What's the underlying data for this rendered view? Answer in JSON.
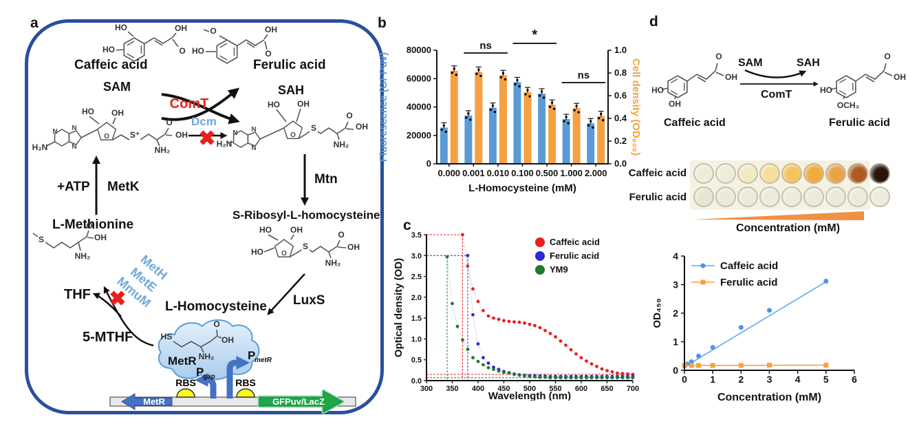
{
  "panels": {
    "a": "a",
    "b": "b",
    "c": "c",
    "d": "d"
  },
  "atoms": {
    "ho": "HO",
    "oh": "OH",
    "o": "O",
    "n": "N",
    "s": "S",
    "s_plus": "S⁺",
    "hs": "HS",
    "nh2": "NH₂",
    "h2n": "H₂N",
    "och3": "OCH₃"
  },
  "panel_a": {
    "caffeic": "Caffeic acid",
    "ferulic": "Ferulic acid",
    "comt": "ComT",
    "sam": "SAM",
    "sah": "SAH",
    "dcm": "Dcm",
    "mtn": "Mtn",
    "sribosyl": "S-Ribosyl-L-homocysteine",
    "luxs": "LuxS",
    "lhomocysteine": "L-Homocysteine",
    "metr": "MetR",
    "atp": "+ATP",
    "metk": "MetK",
    "lmethionine": "L-Methionine",
    "thf": "THF",
    "mthf": "5-MTHF",
    "meth": "MetH",
    "mete": "MetE",
    "mmum": "MmuM",
    "rbs": "RBS",
    "gene_metr": "MetR",
    "gene_gfp": "GFPuv/LacZ",
    "p": "P",
    "p_gap_sub": "gap",
    "p_metr_sub": "metR",
    "block_x": "✖"
  },
  "panel_d": {
    "sam": "SAM",
    "sah": "SAH",
    "comt": "ComT",
    "caffeic": "Caffeic acid",
    "ferulic": "Ferulic acid",
    "plate_row1": "Caffeic acid",
    "plate_row2": "Ferulic acid",
    "wedge_label": "Concentration (mM)",
    "plate": {
      "caffeic_colors": [
        "#ECEFD8",
        "#EDEEDA",
        "#F0EAC2",
        "#F6DE9C",
        "#F6C45F",
        "#F3A93C",
        "#E9A449",
        "#AE5A1F",
        "#28160E"
      ],
      "ferulic_colors": [
        "#E7E5D3",
        "#EBE9D7",
        "#ECEAD8",
        "#EDEBDB",
        "#EDECDC",
        "#ECEADA",
        "#EBE9D9",
        "#ECEBDB",
        "#EDECDE"
      ]
    }
  },
  "chart_data": [
    {
      "panel": "b",
      "type": "bar",
      "categories": [
        "0.000",
        "0.001",
        "0.010",
        "0.100",
        "0.500",
        "1.000",
        "2.000"
      ],
      "xlabel": "L-Homocysteine (mM)",
      "left_axis": {
        "label": "Fluorescence (GFPuv)",
        "color": "#5B9BD5",
        "range": [
          0,
          80000
        ],
        "tick_values": [
          0,
          20000,
          40000,
          60000,
          80000
        ],
        "tick_labels": [
          "0",
          "20000",
          "40000",
          "60000",
          "80000"
        ]
      },
      "right_axis": {
        "label": "Cell density (OD₆₀₀)",
        "color": "#F5A142",
        "range": [
          0,
          1
        ],
        "tick_values": [
          0,
          0.2,
          0.4,
          0.6,
          0.8,
          1.0
        ],
        "tick_labels": [
          "0.0",
          "0.2",
          "0.4",
          "0.6",
          "0.8",
          "1.0"
        ]
      },
      "series": [
        {
          "name": "Fluorescence (GFPuv)",
          "axis": "left",
          "color": "#5B9BD5",
          "values": [
            25500,
            34000,
            39500,
            57500,
            49500,
            31500,
            28500
          ]
        },
        {
          "name": "Cell density (OD600)",
          "axis": "right",
          "color": "#F5A142",
          "values": [
            0.82,
            0.81,
            0.78,
            0.63,
            0.52,
            0.49,
            0.42
          ]
        }
      ],
      "significance": [
        {
          "label": "ns",
          "from": 1,
          "to": 2
        },
        {
          "label": "*",
          "from": 3,
          "to": 4
        },
        {
          "label": "ns",
          "from": 5,
          "to": 6
        }
      ]
    },
    {
      "panel": "c",
      "type": "scatter",
      "xlabel": "Wavelength (nm)",
      "ylabel": "Optical density (OD)",
      "xlim": [
        300,
        700
      ],
      "ylim": [
        0,
        3.5
      ],
      "xticks": [
        300,
        350,
        400,
        450,
        500,
        550,
        600,
        650,
        700
      ],
      "ytick_values": [
        0,
        0.5,
        1,
        1.5,
        2,
        2.5,
        3,
        3.5
      ],
      "ytick_labels": [
        "0.0",
        "0.5",
        "1.0",
        "1.5",
        "2.0",
        "2.5",
        "3.0",
        "3.5"
      ],
      "legend_position": "top-right",
      "series": [
        {
          "name": "Caffeic acid",
          "color": "#ED1C24",
          "x": [
            370,
            380,
            390,
            400,
            410,
            420,
            430,
            440,
            450,
            460,
            470,
            480,
            490,
            500,
            510,
            520,
            530,
            540,
            550,
            560,
            570,
            580,
            590,
            600,
            610,
            620,
            630,
            640,
            650,
            660,
            670,
            680,
            690,
            700
          ],
          "y": [
            3.5,
            2.75,
            2.2,
            1.9,
            1.68,
            1.55,
            1.5,
            1.47,
            1.44,
            1.42,
            1.41,
            1.4,
            1.38,
            1.35,
            1.32,
            1.27,
            1.2,
            1.13,
            1.05,
            0.95,
            0.85,
            0.74,
            0.64,
            0.55,
            0.47,
            0.4,
            0.34,
            0.28,
            0.24,
            0.21,
            0.18,
            0.17,
            0.16,
            0.15
          ]
        },
        {
          "name": "Ferulic acid",
          "color": "#2A2AD4",
          "x": [
            380,
            390,
            400,
            410,
            420,
            430,
            440,
            450,
            460,
            470,
            480,
            490,
            500,
            510,
            520,
            530,
            540,
            550,
            560,
            570,
            580,
            590,
            600,
            610,
            620,
            630,
            640,
            650,
            660,
            670,
            680,
            690,
            700
          ],
          "y": [
            3.0,
            1.58,
            0.88,
            0.55,
            0.42,
            0.32,
            0.27,
            0.22,
            0.19,
            0.16,
            0.14,
            0.13,
            0.12,
            0.12,
            0.11,
            0.11,
            0.1,
            0.1,
            0.1,
            0.1,
            0.1,
            0.1,
            0.1,
            0.1,
            0.1,
            0.1,
            0.1,
            0.1,
            0.1,
            0.1,
            0.1,
            0.1,
            0.1
          ]
        },
        {
          "name": "YM9",
          "color": "#1F7A33",
          "x": [
            340,
            350,
            360,
            370,
            380,
            390,
            400,
            410,
            420,
            430,
            440,
            450,
            460,
            470,
            480,
            490,
            500,
            510,
            520,
            530,
            540,
            550,
            560,
            570,
            580,
            590,
            600,
            610,
            620,
            630,
            640,
            650,
            660,
            670,
            680,
            690,
            700
          ],
          "y": [
            2.97,
            1.85,
            1.3,
            0.98,
            0.75,
            0.55,
            0.46,
            0.38,
            0.31,
            0.27,
            0.23,
            0.2,
            0.18,
            0.15,
            0.13,
            0.11,
            0.1,
            0.09,
            0.08,
            0.08,
            0.07,
            0.07,
            0.07,
            0.07,
            0.07,
            0.07,
            0.07,
            0.07,
            0.07,
            0.07,
            0.07,
            0.07,
            0.07,
            0.07,
            0.07,
            0.07,
            0.07
          ]
        }
      ],
      "guides": [
        {
          "axis": "h",
          "value": 3.5,
          "to_x": 370,
          "color": "#ED1C24"
        },
        {
          "axis": "v",
          "value": 370,
          "from_y": 3.5,
          "color": "#ED1C24"
        },
        {
          "axis": "h",
          "value": 3.0,
          "to_x": 380,
          "color": "#2A2AD4"
        },
        {
          "axis": "v",
          "value": 380,
          "from_y": 3.0,
          "color": "#2A2AD4"
        },
        {
          "axis": "v",
          "value": 340,
          "from_y": 2.97,
          "color": "#1F7A33"
        },
        {
          "axis": "h",
          "value": 0.15,
          "to_x": 700,
          "color": "#ED1C24"
        },
        {
          "axis": "h",
          "value": 0.07,
          "to_x": 700,
          "color": "#1F7A33"
        }
      ]
    },
    {
      "panel": "d",
      "type": "line",
      "xlabel": "Concentration (mM)",
      "ylabel": "OD₄₅₉",
      "xlim": [
        0,
        6
      ],
      "ylim": [
        0,
        4
      ],
      "xticks": [
        0,
        1,
        2,
        3,
        4,
        5,
        6
      ],
      "yticks": [
        0,
        1,
        2,
        3,
        4
      ],
      "legend_position": "top-left",
      "series": [
        {
          "name": "Caffeic acid",
          "color": "#5DA5F5",
          "marker_color": "#4D94F0",
          "marker": "circle",
          "x": [
            0,
            0.1,
            0.25,
            0.5,
            1,
            2,
            3,
            5
          ],
          "y": [
            0.15,
            0.22,
            0.3,
            0.5,
            0.8,
            1.5,
            2.1,
            3.12
          ],
          "fit_line": [
            [
              0,
              0.12
            ],
            [
              5,
              3.1
            ]
          ]
        },
        {
          "name": "Ferulic acid",
          "color": "#F5A142",
          "marker_color": "#F5A142",
          "marker": "square",
          "x": [
            0,
            0.25,
            0.5,
            1,
            2,
            3,
            5
          ],
          "y": [
            0.17,
            0.17,
            0.17,
            0.17,
            0.17,
            0.18,
            0.18
          ],
          "fit_line": [
            [
              0,
              0.17
            ],
            [
              5,
              0.18
            ]
          ]
        }
      ]
    }
  ]
}
